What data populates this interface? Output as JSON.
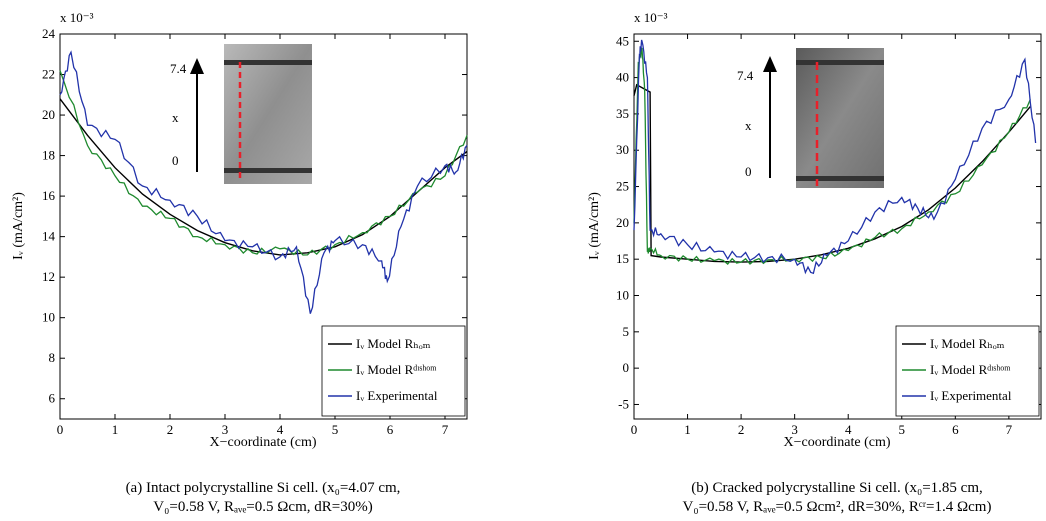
{
  "colors": {
    "model_hom": "#000000",
    "model_dishom": "#1f8a2e",
    "experimental": "#2233aa",
    "crack_line": "#e8202a"
  },
  "chart_data": [
    {
      "type": "line",
      "caption_line1": "(a) Intact polycrystalline Si cell. (x₀=4.07 cm,",
      "caption_line2": "V₀=0.58 V, Rₐᵥₑ=0.5 Ωcm, dR=30%)",
      "xlabel": "X−coordinate (cm)",
      "ylabel": "Iᵥ (mA/cm²)",
      "y_multiplier": "x 10⁻³",
      "xlim": [
        0,
        7.4
      ],
      "ylim": [
        5,
        24
      ],
      "x_ticks": [
        0,
        1,
        2,
        3,
        4,
        5,
        6,
        7
      ],
      "y_ticks": [
        6,
        8,
        10,
        12,
        14,
        16,
        18,
        20,
        22,
        24
      ],
      "inset": {
        "top_label": "7.4",
        "mid_label": "x",
        "bottom_label": "0"
      },
      "legend": [
        "Iᵥ Model Rₕₒₘ",
        "Iᵥ Model Rᵈᶦˢʰᵒᵐ",
        "Iᵥ Experimental"
      ],
      "series": [
        {
          "name": "Iᵥ Model Rₕₒₘ",
          "x": [
            0,
            0.5,
            1,
            1.5,
            2,
            2.5,
            3,
            3.5,
            4,
            4.5,
            5,
            5.5,
            6,
            6.5,
            7,
            7.4
          ],
          "y": [
            20.8,
            19.0,
            17.4,
            16.1,
            15.1,
            14.3,
            13.7,
            13.3,
            13.1,
            13.2,
            13.5,
            14.1,
            15.0,
            16.2,
            17.4,
            18.2
          ]
        },
        {
          "name": "Iᵥ Model Rᵈᶦˢʰᵒᵐ",
          "x": [
            0,
            0.5,
            1,
            1.5,
            2,
            2.5,
            3,
            3.5,
            4,
            4.5,
            5,
            5.5,
            6,
            6.5,
            7,
            7.4
          ],
          "y": [
            22.2,
            18.5,
            17.0,
            15.5,
            14.9,
            14.0,
            13.6,
            13.2,
            13.4,
            13.1,
            13.6,
            14.2,
            15.0,
            16.2,
            17.0,
            19.0
          ]
        },
        {
          "name": "Iᵥ Experimental",
          "x": [
            0,
            0.2,
            0.5,
            1,
            1.5,
            2,
            2.5,
            3,
            3.5,
            4,
            4.3,
            4.55,
            4.8,
            5,
            5.5,
            5.85,
            5.95,
            6.2,
            6.5,
            7,
            7.2,
            7.4
          ],
          "y": [
            21.0,
            23.1,
            19.5,
            18.8,
            16.5,
            15.8,
            15.0,
            13.8,
            13.5,
            13.0,
            13.5,
            10.2,
            13.2,
            13.8,
            13.6,
            12.8,
            11.8,
            14.5,
            16.5,
            17.5,
            17.2,
            18.5
          ]
        }
      ]
    },
    {
      "type": "line",
      "caption_line1": "(b) Cracked polycrystalline Si cell. (x₀=1.85 cm,",
      "caption_line2": "V₀=0.58 V, Rₐᵥₑ=0.5 Ωcm², dR=30%, Rᶜʳ=1.4 Ωcm)",
      "xlabel": "X−coordinate (cm)",
      "ylabel": "Iᵥ (mA/cm²)",
      "y_multiplier": "x 10⁻³",
      "xlim": [
        0,
        7.6
      ],
      "ylim": [
        -7,
        46
      ],
      "x_ticks": [
        0,
        1,
        2,
        3,
        4,
        5,
        6,
        7
      ],
      "y_ticks": [
        -5,
        0,
        5,
        10,
        15,
        20,
        25,
        30,
        35,
        40,
        45
      ],
      "inset": {
        "top_label": "7.4",
        "mid_label": "x",
        "bottom_label": "0"
      },
      "legend": [
        "Iᵥ Model Rₕₒₘ",
        "Iᵥ Model Rᵈᶦˢʰᵒᵐ",
        "Iᵥ Experimental"
      ],
      "series": [
        {
          "name": "Iᵥ Model Rₕₒₘ",
          "x": [
            0,
            0.05,
            0.3,
            0.32,
            0.5,
            1,
            1.5,
            2,
            2.5,
            3,
            3.5,
            4,
            4.5,
            5,
            5.5,
            6,
            6.5,
            7,
            7.4
          ],
          "y": [
            37.5,
            39.0,
            38.0,
            15.5,
            15.3,
            15.0,
            14.7,
            14.6,
            14.7,
            15.0,
            15.6,
            16.5,
            17.8,
            19.5,
            21.8,
            24.8,
            28.4,
            32.5,
            36.0
          ]
        },
        {
          "name": "Iᵥ Model Rᵈᶦˢʰᵒᵐ",
          "x": [
            0,
            0.08,
            0.15,
            0.2,
            0.25,
            0.3,
            0.5,
            1,
            1.5,
            2,
            2.5,
            3,
            3.5,
            4,
            4.5,
            5,
            5.5,
            6,
            6.5,
            7,
            7.4
          ],
          "y": [
            20,
            42,
            44,
            38,
            16,
            16.5,
            15.5,
            15.0,
            14.8,
            14.6,
            14.9,
            15.0,
            15.2,
            16.2,
            18.0,
            19.2,
            21.5,
            24.0,
            28.0,
            32.5,
            37.0
          ]
        },
        {
          "name": "Iᵥ Experimental",
          "x": [
            0,
            0.1,
            0.15,
            0.25,
            0.3,
            0.5,
            1,
            1.5,
            2,
            2.5,
            3,
            3.3,
            3.6,
            4,
            4.5,
            5,
            5.3,
            5.6,
            6,
            6.5,
            7,
            7.3,
            7.5
          ],
          "y": [
            19,
            43,
            45,
            40,
            19,
            18.5,
            17.0,
            16.0,
            15.3,
            15.2,
            15.0,
            13.2,
            15.5,
            17.5,
            21.5,
            23.5,
            22.0,
            20.5,
            26.0,
            33.0,
            37.0,
            42.5,
            31.0
          ]
        }
      ]
    }
  ]
}
